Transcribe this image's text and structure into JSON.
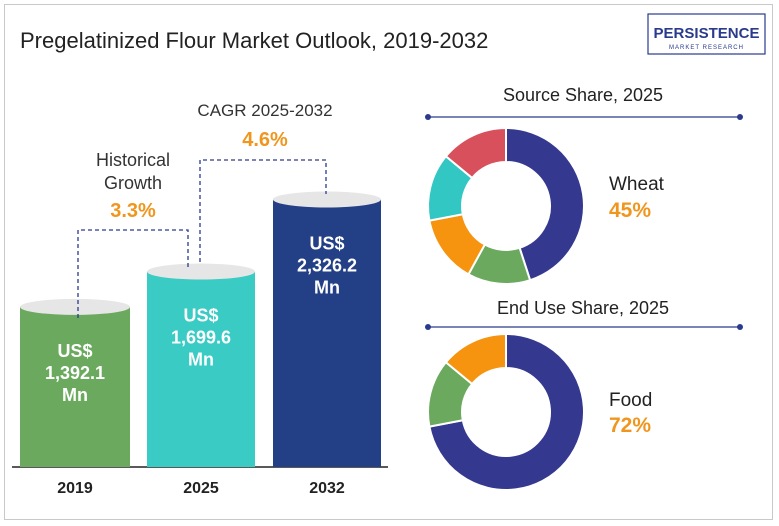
{
  "title": "Pregelatinized Flour Market Outlook, 2019-2032",
  "logo": {
    "main": "PERSISTENCE",
    "sub": "MARKET RESEARCH"
  },
  "bar_chart": {
    "annotations": {
      "historical": {
        "label_line1": "Historical",
        "label_line2": "Growth",
        "value": "3.3%"
      },
      "cagr": {
        "label": "CAGR 2025-2032",
        "value": "4.6%"
      }
    }
  },
  "donuts": [
    {
      "title": "Source Share, 2025",
      "highlight_label": "Wheat",
      "highlight_value": "45%"
    },
    {
      "title": "End Use Share, 2025",
      "highlight_label": "Food",
      "highlight_value": "72%"
    }
  ],
  "colors": {
    "title_text": "#222222",
    "accent_orange": "#F0961E",
    "bar_2019": "#6BAA5E",
    "bar_2025": "#39CBC4",
    "bar_2032": "#233F86",
    "donut_navy": "#34398F",
    "donut_green": "#6BAA5E",
    "donut_orange": "#F6930F",
    "donut_teal": "#33C7C4",
    "donut_red": "#D8505C",
    "logo_blue": "#2A3A8C"
  },
  "chart_data": [
    {
      "type": "bar",
      "categories": [
        "2019",
        "2025",
        "2032"
      ],
      "values": [
        1392.1,
        1699.6,
        2326.2
      ],
      "value_labels": [
        [
          "US$",
          "1,392.1",
          "Mn"
        ],
        [
          "US$",
          "1,699.6",
          "Mn"
        ],
        [
          "US$",
          "2,326.2",
          "Mn"
        ]
      ],
      "title": "",
      "xlabel": "",
      "ylabel": "",
      "grid": false
    },
    {
      "type": "pie",
      "title": "Source Share, 2025",
      "values": [
        45,
        13,
        14,
        14,
        14
      ],
      "highlight": {
        "label": "Wheat",
        "value": 45
      }
    },
    {
      "type": "pie",
      "title": "End Use Share, 2025",
      "values": [
        72,
        14,
        14
      ],
      "highlight": {
        "label": "Food",
        "value": 72
      }
    }
  ]
}
